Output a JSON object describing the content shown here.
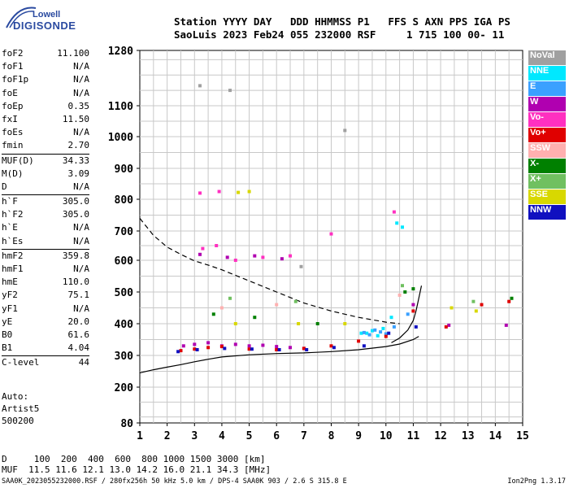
{
  "logo": {
    "line1": "Lowell",
    "line2": "DIGISONDE"
  },
  "header": {
    "line1": "Station YYYY DAY   DDD HHMMSS P1   FFS S AXN PPS IGA PS",
    "line2": "SaoLuis 2023 Feb24 055 232000 RSF     1 715 100 00- 11"
  },
  "params_group1": [
    {
      "label": "foF2",
      "value": "11.100"
    },
    {
      "label": "foF1",
      "value": "N/A"
    },
    {
      "label": "foF1p",
      "value": "N/A"
    },
    {
      "label": "foE",
      "value": "N/A"
    },
    {
      "label": "foEp",
      "value": "0.35"
    },
    {
      "label": "fxI",
      "value": "11.50"
    },
    {
      "label": "foEs",
      "value": "N/A"
    },
    {
      "label": "fmin",
      "value": "2.70"
    }
  ],
  "params_group2": [
    {
      "label": "MUF(D)",
      "value": "34.33"
    },
    {
      "label": "M(D)",
      "value": "3.09"
    },
    {
      "label": "D",
      "value": "N/A"
    }
  ],
  "params_group3": [
    {
      "label": "h`F",
      "value": "305.0"
    },
    {
      "label": "h`F2",
      "value": "305.0"
    },
    {
      "label": "h`E",
      "value": "N/A"
    },
    {
      "label": "h`Es",
      "value": "N/A"
    }
  ],
  "params_group4": [
    {
      "label": "hmF2",
      "value": "359.8"
    },
    {
      "label": "hmF1",
      "value": "N/A"
    },
    {
      "label": "hmE",
      "value": "110.0"
    },
    {
      "label": "yF2",
      "value": "75.1"
    },
    {
      "label": "yF1",
      "value": "N/A"
    },
    {
      "label": "yE",
      "value": "20.0"
    },
    {
      "label": "B0",
      "value": "61.6"
    },
    {
      "label": "B1",
      "value": "4.04"
    }
  ],
  "params_group5": [
    {
      "label": "C-level",
      "value": "44"
    }
  ],
  "auto": {
    "line1": "Auto:",
    "line2": "Artist5",
    "line3": "500200"
  },
  "legend": [
    {
      "label": "NoVal",
      "color": "#a0a0a0"
    },
    {
      "label": "NNE",
      "color": "#00e8ff"
    },
    {
      "label": "E",
      "color": "#3aa0ff"
    },
    {
      "label": "W",
      "color": "#b000b0"
    },
    {
      "label": "Vo-",
      "color": "#ff30c0"
    },
    {
      "label": "Vo+",
      "color": "#e00000"
    },
    {
      "label": "SSW",
      "color": "#ffb0b0"
    },
    {
      "label": "X-",
      "color": "#008000"
    },
    {
      "label": "X+",
      "color": "#70c060"
    },
    {
      "label": "SSE",
      "color": "#d8d800"
    },
    {
      "label": "NNW",
      "color": "#1010c0"
    }
  ],
  "muf_table": {
    "row1": "D     100  200  400  600  800 1000 1500 3000 [km]",
    "row2": "MUF  11.5 11.6 12.1 13.0 14.2 16.0 21.1 34.3 [MHz]"
  },
  "footer": "SAA0K_2023055232000.RSF / 280fx256h 50 kHz 5.0 km / DPS-4 SAA0K 903 / 2.6 S 315.8 E",
  "version": "Ion2Png 1.3.17",
  "chart_data": {
    "type": "scatter",
    "title": "",
    "xlabel": "",
    "ylabel": "",
    "xlim": [
      1,
      15
    ],
    "ylim": [
      80,
      1280
    ],
    "y_scale": "nonlinear",
    "x_ticks": [
      "1",
      "2",
      "3",
      "4",
      "5",
      "6",
      "7",
      "8",
      "9",
      "10",
      "11",
      "12",
      "13",
      "14",
      "15"
    ],
    "y_ticks": [
      "80",
      "200",
      "300",
      "400",
      "500",
      "600",
      "700",
      "800",
      "900",
      "1000",
      "1100",
      "1280"
    ],
    "grid": true,
    "legend_position": "right",
    "series": [
      {
        "name": "NNE",
        "color": "#00e8ff",
        "points": [
          [
            9.3,
            370
          ],
          [
            9.5,
            378
          ],
          [
            9.7,
            362
          ],
          [
            9.9,
            385
          ],
          [
            10.4,
            725
          ],
          [
            10.6,
            712
          ],
          [
            10.2,
            420
          ],
          [
            9.1,
            370
          ]
        ]
      },
      {
        "name": "E",
        "color": "#3aa0ff",
        "points": [
          [
            9.2,
            372
          ],
          [
            9.4,
            365
          ],
          [
            9.6,
            380
          ],
          [
            9.8,
            374
          ],
          [
            10.0,
            368
          ],
          [
            10.3,
            390
          ],
          [
            10.8,
            430
          ]
        ]
      },
      {
        "name": "W",
        "color": "#b000b0",
        "points": [
          [
            2.6,
            330
          ],
          [
            3.0,
            335
          ],
          [
            3.5,
            340
          ],
          [
            4.0,
            330
          ],
          [
            4.5,
            335
          ],
          [
            5.0,
            330
          ],
          [
            5.5,
            332
          ],
          [
            6.0,
            328
          ],
          [
            6.5,
            325
          ],
          [
            7.0,
            322
          ],
          [
            3.2,
            620
          ],
          [
            4.2,
            610
          ],
          [
            5.2,
            615
          ],
          [
            6.2,
            605
          ],
          [
            11.0,
            460
          ],
          [
            12.3,
            395
          ],
          [
            14.4,
            395
          ]
        ]
      },
      {
        "name": "Vo-",
        "color": "#ff30c0",
        "points": [
          [
            3.3,
            640
          ],
          [
            3.8,
            650
          ],
          [
            4.5,
            600
          ],
          [
            5.5,
            610
          ],
          [
            6.5,
            615
          ],
          [
            3.2,
            820
          ],
          [
            3.9,
            825
          ],
          [
            8.0,
            690
          ],
          [
            10.3,
            760
          ]
        ]
      },
      {
        "name": "Vo+",
        "color": "#e00000",
        "points": [
          [
            2.5,
            315
          ],
          [
            3.0,
            320
          ],
          [
            3.5,
            325
          ],
          [
            4.0,
            328
          ],
          [
            5.0,
            320
          ],
          [
            6.0,
            318
          ],
          [
            7.0,
            322
          ],
          [
            8.0,
            330
          ],
          [
            9.0,
            345
          ],
          [
            10.0,
            360
          ],
          [
            11.0,
            440
          ],
          [
            12.2,
            390
          ],
          [
            13.5,
            460
          ],
          [
            14.5,
            470
          ]
        ]
      },
      {
        "name": "SSW",
        "color": "#ffb0b0",
        "points": [
          [
            4.0,
            450
          ],
          [
            6.0,
            460
          ],
          [
            10.5,
            490
          ]
        ]
      },
      {
        "name": "X-",
        "color": "#008000",
        "points": [
          [
            3.7,
            430
          ],
          [
            5.2,
            420
          ],
          [
            7.5,
            400
          ],
          [
            10.7,
            500
          ],
          [
            11.0,
            510
          ],
          [
            14.6,
            480
          ]
        ]
      },
      {
        "name": "X+",
        "color": "#70c060",
        "points": [
          [
            4.3,
            480
          ],
          [
            6.7,
            470
          ],
          [
            10.6,
            520
          ],
          [
            13.2,
            470
          ]
        ]
      },
      {
        "name": "SSE",
        "color": "#d8d800",
        "points": [
          [
            4.5,
            400
          ],
          [
            6.8,
            400
          ],
          [
            8.5,
            400
          ],
          [
            12.4,
            450
          ],
          [
            13.3,
            440
          ],
          [
            4.6,
            822
          ],
          [
            5.0,
            825
          ]
        ]
      },
      {
        "name": "NNW",
        "color": "#1010c0",
        "points": [
          [
            2.4,
            312
          ],
          [
            3.1,
            318
          ],
          [
            4.1,
            322
          ],
          [
            5.1,
            320
          ],
          [
            6.1,
            318
          ],
          [
            7.1,
            318
          ],
          [
            8.1,
            325
          ],
          [
            9.2,
            330
          ],
          [
            10.1,
            370
          ],
          [
            11.1,
            390
          ]
        ]
      },
      {
        "name": "NoVal",
        "color": "#a0a0a0",
        "points": [
          [
            3.2,
            1165
          ],
          [
            4.3,
            1150
          ],
          [
            6.9,
            580
          ],
          [
            8.5,
            1020
          ]
        ]
      }
    ],
    "curves": [
      {
        "name": "lower-trace",
        "style": "solid",
        "points": [
          [
            1,
            245
          ],
          [
            1.5,
            255
          ],
          [
            2,
            263
          ],
          [
            2.5,
            271
          ],
          [
            3,
            280
          ],
          [
            3.5,
            288
          ],
          [
            4,
            295
          ],
          [
            5,
            302
          ],
          [
            6,
            306
          ],
          [
            7,
            308
          ],
          [
            8,
            312
          ],
          [
            9,
            318
          ],
          [
            10,
            328
          ],
          [
            10.5,
            336
          ],
          [
            11,
            350
          ],
          [
            11.2,
            360
          ]
        ]
      },
      {
        "name": "upper-trace",
        "style": "solid",
        "points": [
          [
            10.2,
            340
          ],
          [
            10.5,
            355
          ],
          [
            10.8,
            380
          ],
          [
            11.0,
            410
          ],
          [
            11.1,
            440
          ],
          [
            11.2,
            480
          ],
          [
            11.3,
            520
          ]
        ]
      },
      {
        "name": "dashed-curve",
        "style": "dashed",
        "points": [
          [
            1,
            740
          ],
          [
            1.5,
            685
          ],
          [
            2,
            645
          ],
          [
            2.5,
            620
          ],
          [
            3,
            598
          ],
          [
            3.5,
            585
          ],
          [
            4,
            570
          ],
          [
            5,
            535
          ],
          [
            6,
            500
          ],
          [
            7,
            465
          ],
          [
            8,
            440
          ],
          [
            9,
            420
          ],
          [
            10,
            405
          ],
          [
            10.5,
            400
          ]
        ]
      }
    ]
  }
}
